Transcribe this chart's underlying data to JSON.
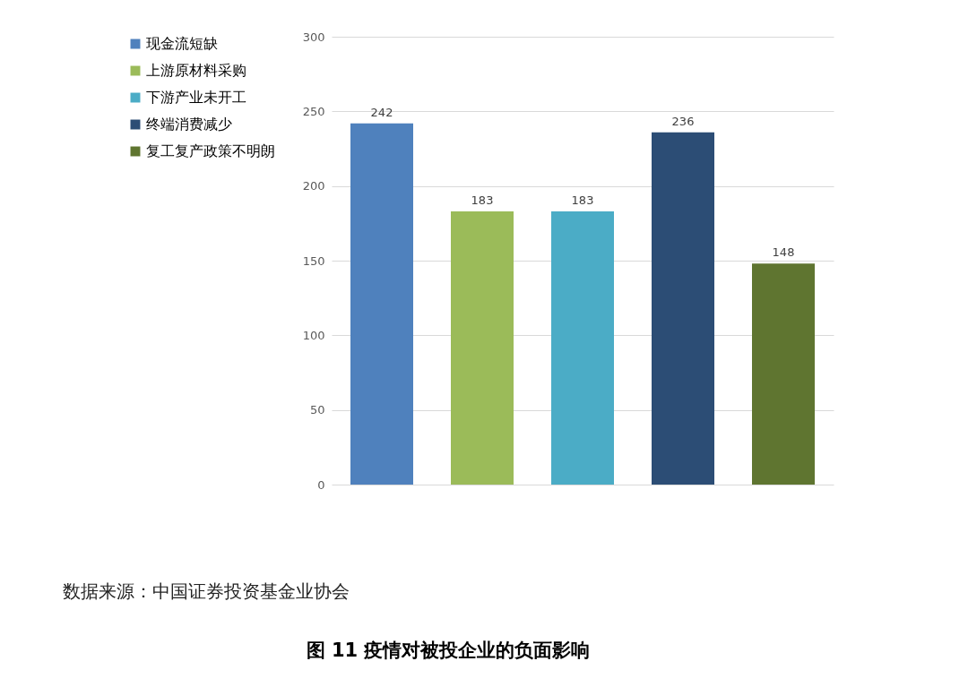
{
  "chart_data": {
    "type": "bar",
    "title": "图 11  疫情对被投企业的负面影响",
    "annotations": [
      "数据来源：中国证券投资基金业协会"
    ],
    "categories": [
      null,
      null,
      null,
      null,
      null
    ],
    "series": [
      {
        "name": "现金流短缺",
        "color": "#4f81bd",
        "values": [
          242,
          null,
          null,
          null,
          null
        ]
      },
      {
        "name": "上游原材料采购",
        "color": "#9bbb59",
        "values": [
          null,
          183,
          null,
          null,
          null
        ]
      },
      {
        "name": "下游产业未开工",
        "color": "#4bacc6",
        "values": [
          null,
          null,
          183,
          null,
          null
        ]
      },
      {
        "name": "终端消费减少",
        "color": "#2c4d75",
        "values": [
          null,
          null,
          null,
          236,
          null
        ]
      },
      {
        "name": "复工复产政策不明朗",
        "color": "#5f7530",
        "values": [
          null,
          null,
          null,
          null,
          148
        ]
      }
    ],
    "ylim": [
      0,
      300
    ],
    "yticks": [
      0,
      50,
      100,
      150,
      200,
      250,
      300
    ],
    "grid": "y",
    "legend": "left",
    "data_labels": true
  }
}
